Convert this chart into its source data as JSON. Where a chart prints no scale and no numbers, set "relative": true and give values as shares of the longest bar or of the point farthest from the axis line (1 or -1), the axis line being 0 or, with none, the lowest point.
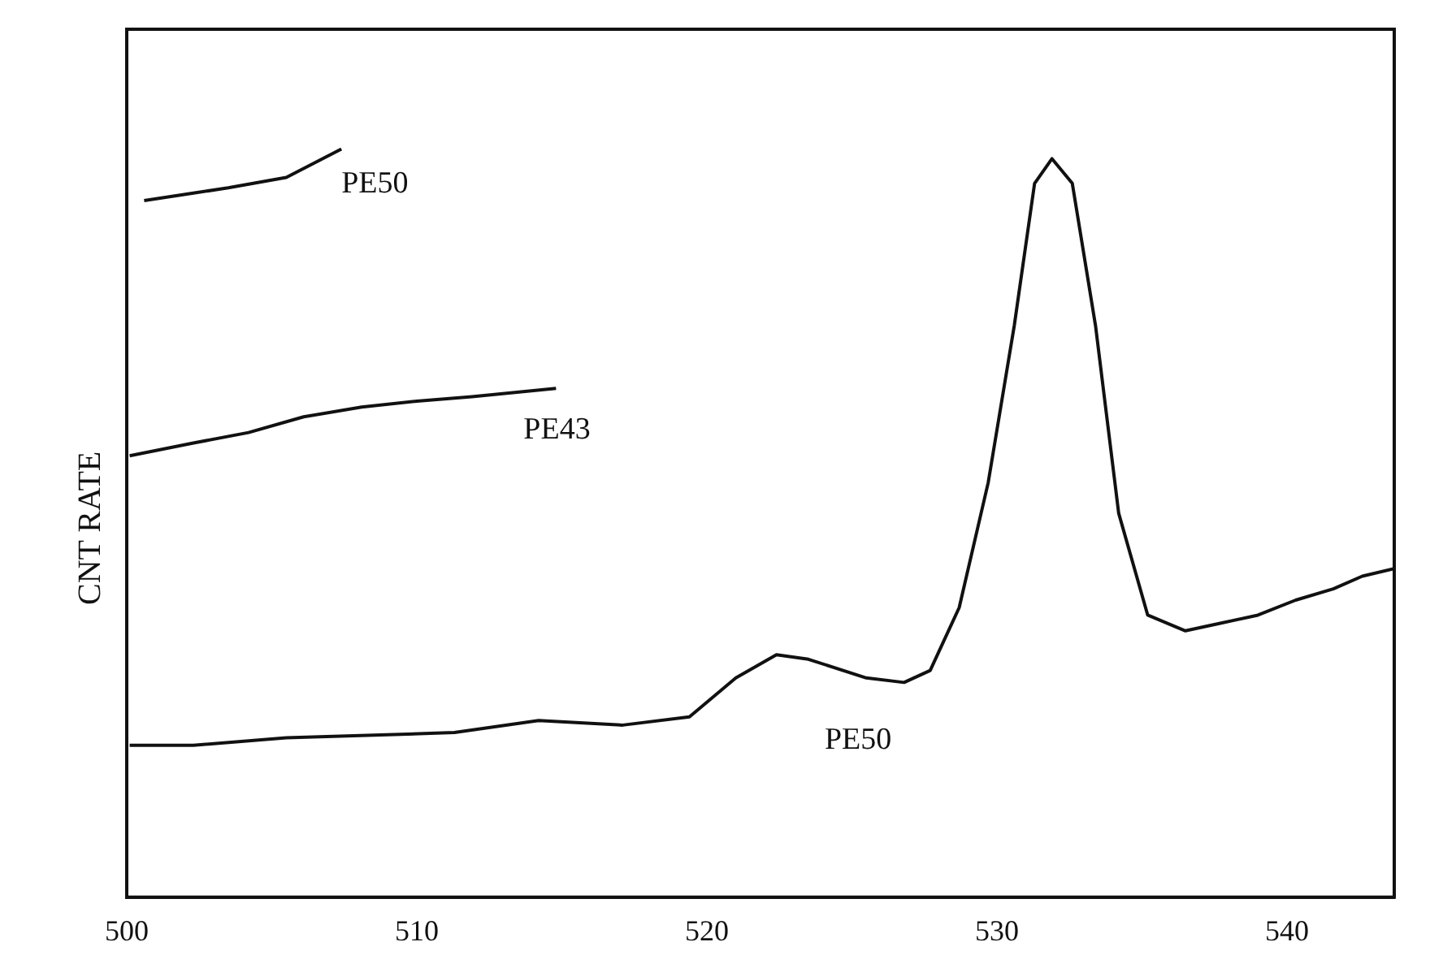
{
  "chart_data": {
    "type": "line",
    "relative": true,
    "ylabel": "CNT RATE",
    "xlim": [
      500,
      543.7
    ],
    "xticks": [
      500,
      510,
      520,
      530,
      540
    ],
    "grid": false,
    "legend": false,
    "tick_labels": "x",
    "marker": "none",
    "line_style": "solid",
    "series": [
      {
        "name": "PE50",
        "color": "#111111",
        "x": [
          500.6,
          502.3,
          503.5,
          505.5,
          507.4
        ],
        "values": [
          0.931,
          0.941,
          0.948,
          0.962,
          1
        ]
      },
      {
        "name": "PE43",
        "color": "#111111",
        "x": [
          500.1,
          502.3,
          504.2,
          506.1,
          508.1,
          510,
          511.9,
          514.8
        ],
        "values": [
          0.59,
          0.607,
          0.621,
          0.642,
          0.655,
          0.663,
          0.669,
          0.68
        ]
      },
      {
        "name": "PE50",
        "color": "#111111",
        "x": [
          500.1,
          502.3,
          505.5,
          511.3,
          514.2,
          517.1,
          519.4,
          521.0,
          522.4,
          523.5,
          525.5,
          526.8,
          527.7,
          528.7,
          529.7,
          530.6,
          531.3,
          531.9,
          532.6,
          533.4,
          534.2,
          535.2,
          536.5,
          537.7,
          539.0,
          540.3,
          541.6,
          542.6,
          543.7
        ],
        "values": [
          0.203,
          0.203,
          0.213,
          0.22,
          0.236,
          0.23,
          0.241,
          0.293,
          0.324,
          0.318,
          0.293,
          0.287,
          0.303,
          0.387,
          0.554,
          0.764,
          0.954,
          0.987,
          0.954,
          0.764,
          0.513,
          0.377,
          0.356,
          0.366,
          0.377,
          0.397,
          0.412,
          0.429,
          0.439
        ]
      }
    ]
  }
}
